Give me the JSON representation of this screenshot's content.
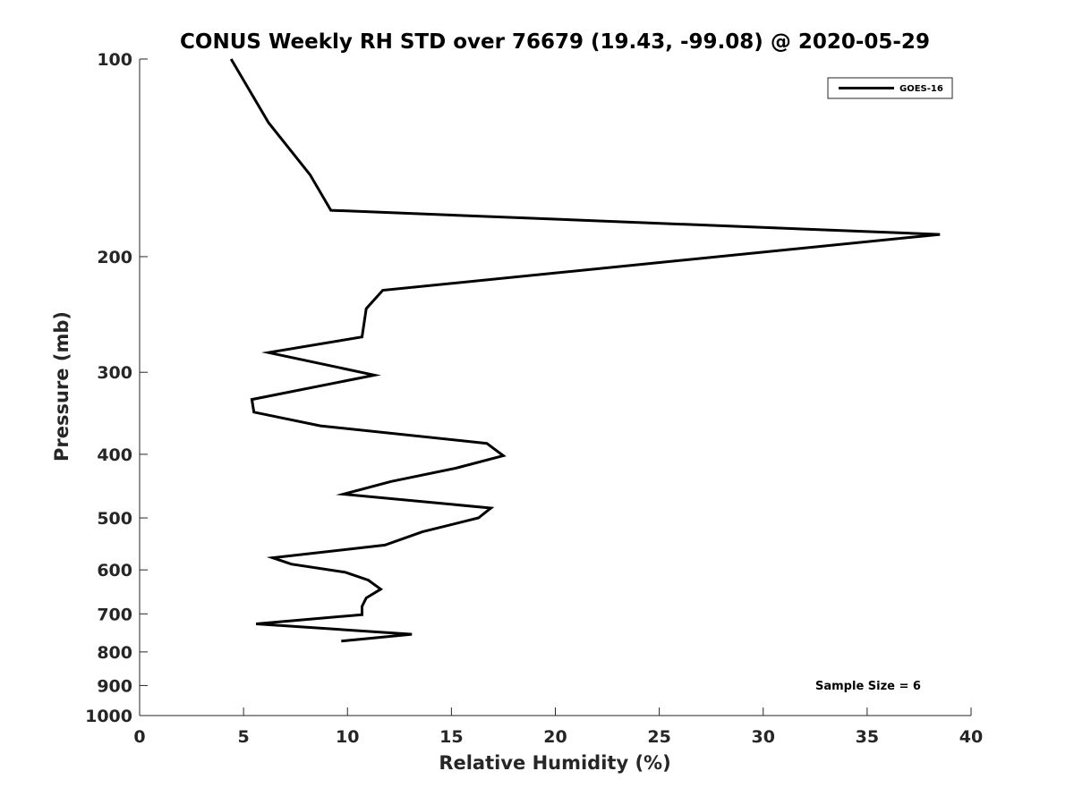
{
  "chart_data": {
    "type": "line",
    "title": "CONUS Weekly RH STD over 76679 (19.43, -99.08) @ 2020-05-29",
    "xlabel": "Relative Humidity (%)",
    "ylabel": "Pressure (mb)",
    "xlim": [
      0,
      40
    ],
    "ylim": [
      100,
      1000
    ],
    "yscale": "log",
    "yreversed": true,
    "xticks": [
      0,
      5,
      10,
      15,
      20,
      25,
      30,
      35,
      40
    ],
    "yticks": [
      100,
      200,
      300,
      400,
      500,
      600,
      700,
      800,
      900,
      1000
    ],
    "grid": false,
    "legend": {
      "placement": "top-right",
      "entries": [
        "GOES-16"
      ]
    },
    "annotation": "Sample Size = 6",
    "series": [
      {
        "name": "GOES-16",
        "color": "#000000",
        "points": [
          [
            4.4,
            100
          ],
          [
            6.2,
            125
          ],
          [
            8.2,
            150
          ],
          [
            9.2,
            170
          ],
          [
            38.5,
            185
          ],
          [
            11.7,
            225
          ],
          [
            10.9,
            240
          ],
          [
            10.7,
            265
          ],
          [
            6.2,
            280
          ],
          [
            11.3,
            303
          ],
          [
            5.4,
            330
          ],
          [
            5.5,
            345
          ],
          [
            8.7,
            362
          ],
          [
            16.7,
            385
          ],
          [
            17.5,
            402
          ],
          [
            15.2,
            420
          ],
          [
            12.1,
            440
          ],
          [
            9.8,
            460
          ],
          [
            16.9,
            483
          ],
          [
            16.3,
            500
          ],
          [
            13.6,
            525
          ],
          [
            11.8,
            550
          ],
          [
            6.4,
            575
          ],
          [
            7.3,
            588
          ],
          [
            9.9,
            605
          ],
          [
            11.0,
            622
          ],
          [
            11.6,
            642
          ],
          [
            10.9,
            662
          ],
          [
            10.7,
            682
          ],
          [
            10.7,
            702
          ],
          [
            5.6,
            725
          ],
          [
            13.1,
            752
          ],
          [
            9.7,
            770
          ]
        ]
      }
    ]
  }
}
